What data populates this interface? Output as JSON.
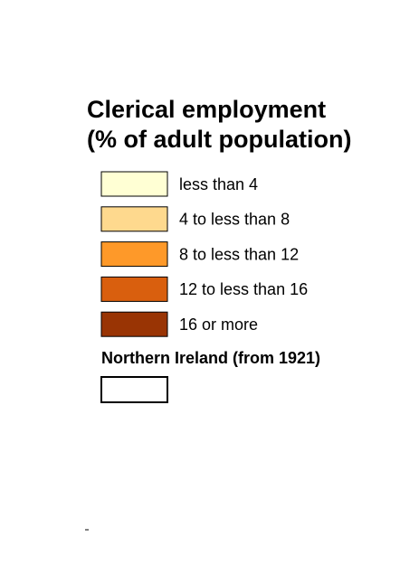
{
  "legend": {
    "title": [
      "Clerical employment",
      "(% of adult population)"
    ],
    "items": [
      {
        "label": "less than 4",
        "color": "#ffffd4"
      },
      {
        "label": "4 to less than 8",
        "color": "#fed98e"
      },
      {
        "label": "8 to less than 12",
        "color": "#fe9929"
      },
      {
        "label": "12 to less than 16",
        "color": "#d95f0e"
      },
      {
        "label": "16 or more",
        "color": "#993404"
      }
    ],
    "region": {
      "label": "Northern Ireland (from 1921)",
      "color": "#ffffff"
    }
  }
}
